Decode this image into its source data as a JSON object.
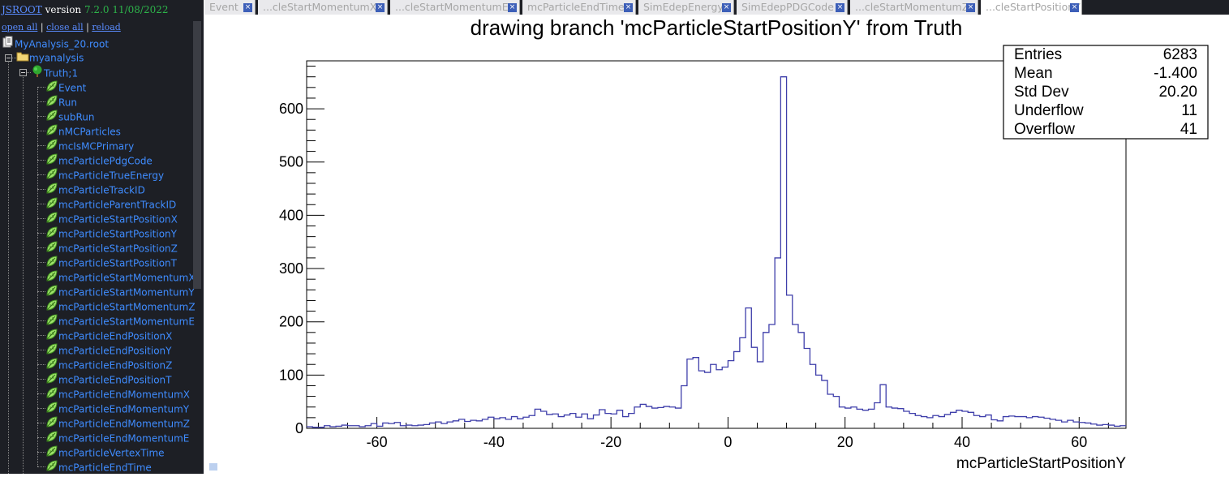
{
  "app": {
    "name": "JSROOT",
    "version_label": "version",
    "version": "7.2.0 11/08/2022"
  },
  "sidebar": {
    "actions": [
      "open all",
      "close all",
      "reload"
    ],
    "file": "MyAnalysis_20.root",
    "folder": "myanalysis",
    "tree": "Truth;1",
    "branches": [
      "Event",
      "Run",
      "subRun",
      "nMCParticles",
      "mcIsMCPrimary",
      "mcParticlePdgCode",
      "mcParticleTrueEnergy",
      "mcParticleTrackID",
      "mcParticleParentTrackID",
      "mcParticleStartPositionX",
      "mcParticleStartPositionY",
      "mcParticleStartPositionZ",
      "mcParticleStartPositionT",
      "mcParticleStartMomentumX",
      "mcParticleStartMomentumY",
      "mcParticleStartMomentumZ",
      "mcParticleStartMomentumE",
      "mcParticleEndPositionX",
      "mcParticleEndPositionY",
      "mcParticleEndPositionZ",
      "mcParticleEndPositionT",
      "mcParticleEndMomentumX",
      "mcParticleEndMomentumY",
      "mcParticleEndMomentumZ",
      "mcParticleEndMomentumE",
      "mcParticleVertexTime",
      "mcParticleEndTime"
    ]
  },
  "tabs": [
    {
      "label": "Event",
      "active": false
    },
    {
      "label": "...cleStartMomentumX",
      "active": false
    },
    {
      "label": "...cleStartMomentumE",
      "active": false
    },
    {
      "label": "mcParticleEndTime",
      "active": false
    },
    {
      "label": "SimEdepEnergy",
      "active": false
    },
    {
      "label": "SimEdepPDGCode",
      "active": false
    },
    {
      "label": "...cleStartMomentumZ",
      "active": false
    },
    {
      "label": "...cleStartPositionY",
      "active": true
    }
  ],
  "tab_close_glyph": "×",
  "stats": [
    {
      "label": "Entries",
      "value": "6283"
    },
    {
      "label": "Mean",
      "value": "-1.400"
    },
    {
      "label": "Std Dev",
      "value": "20.20"
    },
    {
      "label": "Underflow",
      "value": "11"
    },
    {
      "label": "Overflow",
      "value": "41"
    }
  ],
  "colors": {
    "sidebar_bg": "#1d1f25",
    "link": "#3f8cff",
    "hist_line": "#3e3eaa",
    "version": "#2db34a"
  },
  "chart_data": {
    "type": "histogram",
    "title": "drawing branch 'mcParticleStartPositionY' from Truth",
    "xlabel": "mcParticleStartPositionY",
    "ylabel": "",
    "xlim": [
      -72,
      68
    ],
    "ylim": [
      0,
      690
    ],
    "x_ticks": [
      -60,
      -40,
      -20,
      0,
      20,
      40,
      60
    ],
    "y_ticks": [
      0,
      100,
      200,
      300,
      400,
      500,
      600
    ],
    "bin_width": 1,
    "series": [
      {
        "x_start": -72,
        "values": [
          3,
          2,
          2,
          5,
          3,
          4,
          6,
          5,
          5,
          3,
          5,
          9,
          4,
          10,
          9,
          11,
          5,
          6,
          5,
          6,
          7,
          10,
          12,
          9,
          12,
          14,
          17,
          13,
          15,
          14,
          17,
          21,
          18,
          20,
          17,
          22,
          18,
          21,
          24,
          36,
          32,
          26,
          27,
          22,
          25,
          28,
          21,
          27,
          18,
          25,
          35,
          28,
          27,
          34,
          22,
          28,
          40,
          45,
          41,
          38,
          39,
          41,
          40,
          38,
          80,
          130,
          133,
          108,
          105,
          120,
          110,
          115,
          127,
          144,
          170,
          226,
          152,
          125,
          180,
          195,
          320,
          660,
          250,
          195,
          180,
          150,
          120,
          100,
          90,
          64,
          60,
          40,
          38,
          40,
          36,
          34,
          36,
          48,
          82,
          40,
          38,
          37,
          32,
          28,
          24,
          22,
          20,
          24,
          22,
          26,
          30,
          34,
          32,
          30,
          24,
          22,
          25,
          16,
          14,
          22,
          23,
          22,
          22,
          20,
          22,
          21,
          19,
          17,
          15,
          12,
          15,
          12,
          11,
          10,
          8,
          6,
          7,
          6,
          4,
          5
        ]
      }
    ]
  }
}
